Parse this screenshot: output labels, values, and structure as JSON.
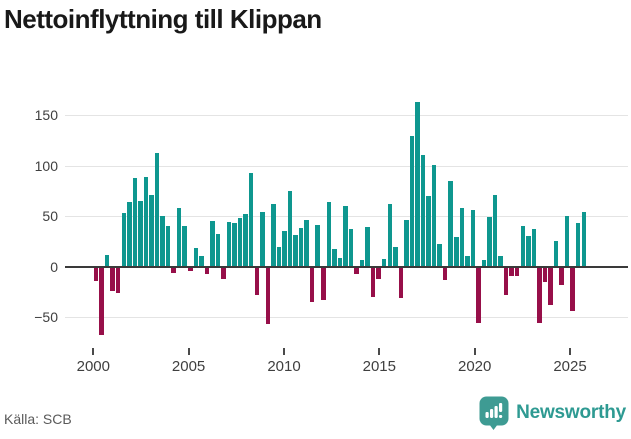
{
  "title": "Nettoinflyttning till Klippan",
  "source": "Källa: SCB",
  "logo": {
    "text": "Newsworthy",
    "icon": "bar-chart-pin"
  },
  "colors": {
    "positive": "#0e978f",
    "negative": "#970f49",
    "gridline": "#e4e4e4",
    "axis_line": "#3a3a3a",
    "tick_label": "#3f3f3f",
    "title_text": "#191919",
    "source_text": "#5a5a5a",
    "logo_teal": "#2e9a92"
  },
  "chart_data": {
    "type": "bar",
    "title": "Nettoinflyttning till Klippan",
    "xlabel": "",
    "ylabel": "",
    "x_note": "quarterly net migration, 2000 through 2025 (approx. periods)",
    "ylim": [
      -75,
      170
    ],
    "grid": "horizontal",
    "legend": "none",
    "ytick_values": [
      150,
      100,
      50,
      0,
      -50
    ],
    "ytick_labels": [
      "150",
      "100",
      "50",
      "0",
      "−50"
    ],
    "xtick_years": [
      2000,
      2005,
      2010,
      2015,
      2020,
      2025
    ],
    "xtick_labels": [
      "2000",
      "2005",
      "2010",
      "2015",
      "2020",
      "2025"
    ],
    "values": [
      -14,
      -68,
      12,
      -24,
      -26,
      53,
      64,
      88,
      65,
      89,
      71,
      112,
      50,
      40,
      -6,
      58,
      40,
      -4,
      19,
      11,
      -7,
      45,
      32,
      -12,
      44,
      43,
      48,
      52,
      93,
      -28,
      54,
      -57,
      62,
      20,
      35,
      75,
      31,
      38,
      46,
      -35,
      41,
      -33,
      64,
      18,
      9,
      60,
      37,
      -7,
      7,
      39,
      -30,
      -12,
      8,
      62,
      20,
      -31,
      46,
      129,
      163,
      110,
      70,
      101,
      22,
      -13,
      85,
      29,
      58,
      11,
      56,
      -56,
      7,
      49,
      71,
      11,
      -28,
      -9,
      -9,
      40,
      30,
      37,
      -56,
      -15,
      -38,
      25,
      -18,
      50,
      -44,
      43,
      54
    ]
  }
}
